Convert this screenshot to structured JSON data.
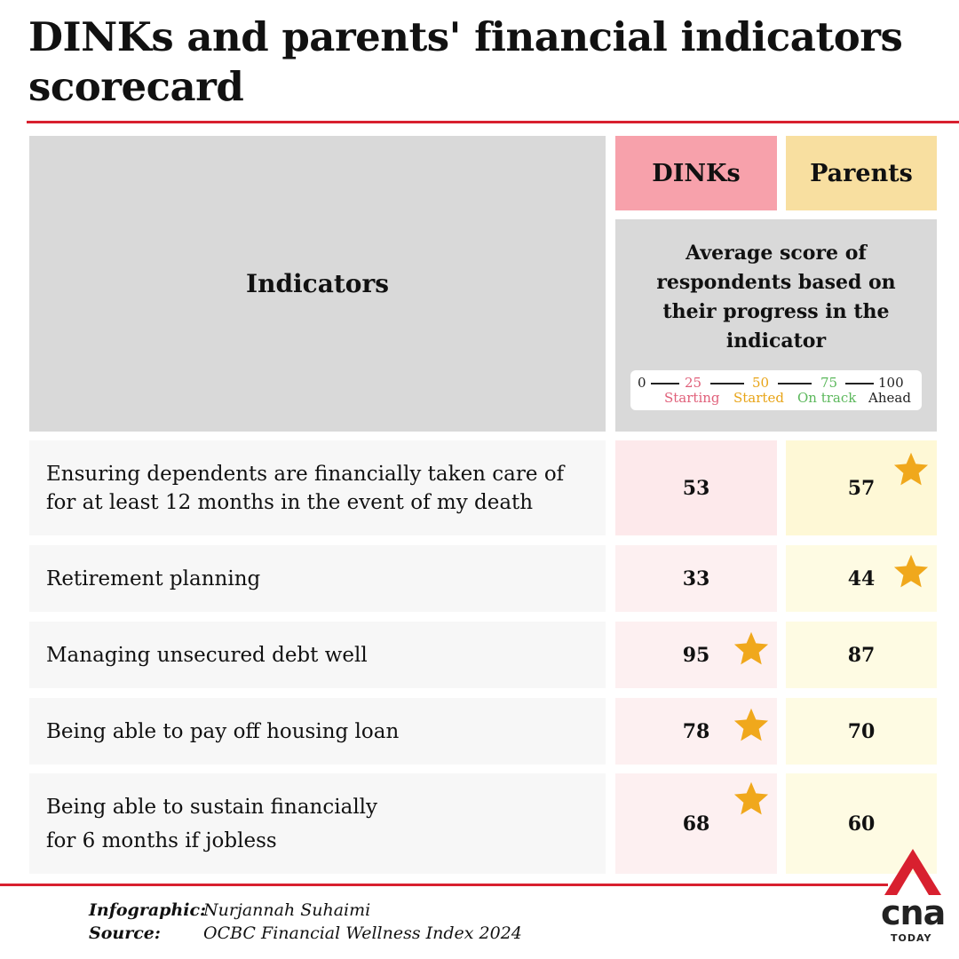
{
  "title": "DINKs and parents' financial indicators scorecard",
  "header": {
    "indicators": "Indicators",
    "dinks": "DINKs",
    "parents": "Parents",
    "average_score": "Average score of respondents based on their progress in the indicator"
  },
  "scale": {
    "v0": "0",
    "v25": "25",
    "v50": "50",
    "v75": "75",
    "v100": "100",
    "starting": "Starting",
    "started": "Started",
    "on_track": "On track",
    "ahead": "Ahead",
    "colors": {
      "starting": "#e0607a",
      "started": "#e8a417",
      "on_track": "#5cb85c",
      "ahead": "#222222"
    }
  },
  "rows": [
    {
      "indicator_line1": "Ensuring dependents are financially taken care of",
      "indicator_line2": "for at least 12 months in the event of my death",
      "dinks": "53",
      "parents": "57",
      "star": "parents"
    },
    {
      "indicator_line1": "Retirement planning",
      "indicator_line2": "",
      "dinks": "33",
      "parents": "44",
      "star": "parents"
    },
    {
      "indicator_line1": "Managing unsecured debt well",
      "indicator_line2": "",
      "dinks": "95",
      "parents": "87",
      "star": "dinks"
    },
    {
      "indicator_line1": "Being able to pay off housing loan",
      "indicator_line2": "",
      "dinks": "78",
      "parents": "70",
      "star": "dinks"
    },
    {
      "indicator_line1": "Being able to sustain financially",
      "indicator_line2": "for 6 months if jobless",
      "dinks": "68",
      "parents": "60",
      "star": "dinks"
    }
  ],
  "credits": {
    "infographic_label": "Infographic:",
    "infographic_value": "Nurjannah Suhaimi",
    "source_label": "Source:",
    "source_value": "OCBC Financial Wellness Index 2024"
  },
  "logo": {
    "name": "cna",
    "sub": "TODAY",
    "color": "#d8202f"
  },
  "colors": {
    "accent": "#d8202f",
    "dinks": "#f7a1ab",
    "parents": "#f8dfa0",
    "star": "#f0a81c",
    "header_gray": "#d9d9d9"
  }
}
